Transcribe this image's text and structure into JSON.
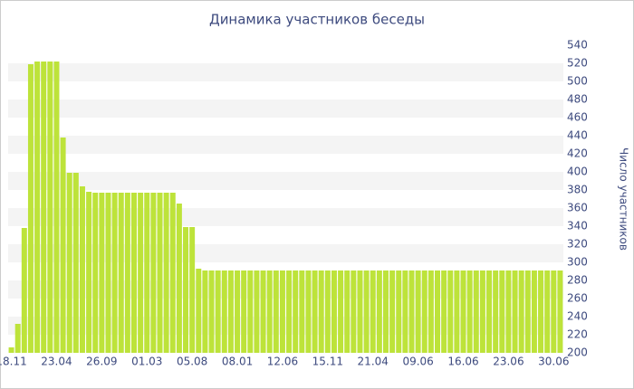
{
  "chart_data": {
    "type": "bar",
    "title": "Динамика участников беседы",
    "y_label": "Число участников",
    "categories": [
      "18.11",
      null,
      null,
      null,
      null,
      null,
      null,
      "23.04",
      null,
      null,
      null,
      null,
      null,
      null,
      "26.09",
      null,
      null,
      null,
      null,
      null,
      null,
      "01.03",
      null,
      null,
      null,
      null,
      null,
      null,
      "05.08",
      null,
      null,
      null,
      null,
      null,
      null,
      "08.01",
      null,
      null,
      null,
      null,
      null,
      null,
      "12.06",
      null,
      null,
      null,
      null,
      null,
      null,
      "15.11",
      null,
      null,
      null,
      null,
      null,
      null,
      "21.04",
      null,
      null,
      null,
      null,
      null,
      null,
      "09.06",
      null,
      null,
      null,
      null,
      null,
      null,
      "16.06",
      null,
      null,
      null,
      null,
      null,
      null,
      "23.06",
      null,
      null,
      null,
      null,
      null,
      null,
      "30.06",
      null
    ],
    "values": [
      206,
      232,
      338,
      519,
      522,
      522,
      522,
      522,
      438,
      399,
      399,
      384,
      378,
      377,
      377,
      377,
      377,
      377,
      377,
      377,
      377,
      377,
      377,
      377,
      377,
      377,
      365,
      339,
      339,
      293,
      291,
      291,
      291,
      291,
      291,
      291,
      291,
      291,
      291,
      291,
      291,
      291,
      291,
      291,
      291,
      291,
      291,
      291,
      291,
      291,
      291,
      291,
      291,
      291,
      291,
      291,
      291,
      291,
      291,
      291,
      291,
      291,
      291,
      291,
      291,
      291,
      291,
      291,
      291,
      291,
      291,
      291,
      291,
      291,
      291,
      291,
      291,
      291,
      291,
      291,
      291,
      291,
      291,
      291,
      291,
      291
    ],
    "color": "#bde33a",
    "ylim": [
      200,
      540
    ],
    "yticks": [
      200,
      220,
      240,
      260,
      280,
      300,
      320,
      340,
      360,
      380,
      400,
      420,
      440,
      460,
      480,
      500,
      520,
      540
    ],
    "grid": true
  }
}
